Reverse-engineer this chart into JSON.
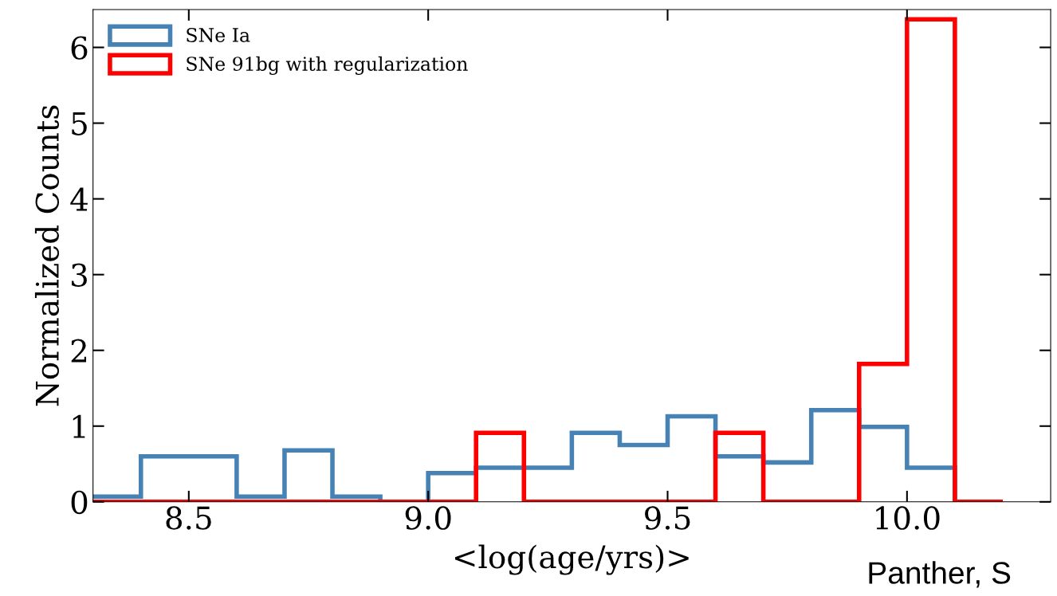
{
  "chart_data": {
    "type": "histogram",
    "xlabel": "<log(age/yrs)>",
    "ylabel": "Normalized Counts",
    "bins": [
      8.3,
      8.4,
      8.5,
      8.6,
      8.7,
      8.8,
      8.9,
      9.0,
      9.1,
      9.2,
      9.3,
      9.4,
      9.5,
      9.6,
      9.7,
      9.8,
      9.9,
      10.0,
      10.1,
      10.2
    ],
    "series": [
      {
        "name": "SNe Ia",
        "color": "#4682b4",
        "values": [
          0.07,
          0.6,
          0.6,
          0.07,
          0.68,
          0.07,
          0,
          0.38,
          0.45,
          0.45,
          0.91,
          0.75,
          1.13,
          0.6,
          0.52,
          1.21,
          0.99,
          0.45,
          0
        ]
      },
      {
        "name": "SNe 91bg with regularization",
        "color": "#ff0000",
        "values": [
          0,
          0,
          0,
          0,
          0,
          0,
          0,
          0,
          0.91,
          0,
          0,
          0,
          0,
          0.91,
          0,
          0,
          1.82,
          6.37,
          0
        ]
      }
    ],
    "xlim": [
      8.3,
      10.3
    ],
    "xticks": [
      8.5,
      {
        "value": 9,
        "label": "9.0"
      },
      9.5,
      {
        "value": 10,
        "label": "10.0"
      }
    ],
    "ylim": [
      0,
      6.5
    ],
    "yticks": [
      0,
      1,
      2,
      3,
      4,
      5,
      6
    ],
    "grid": false,
    "legend": "top left",
    "annotations": [
      "Panther, S"
    ]
  }
}
